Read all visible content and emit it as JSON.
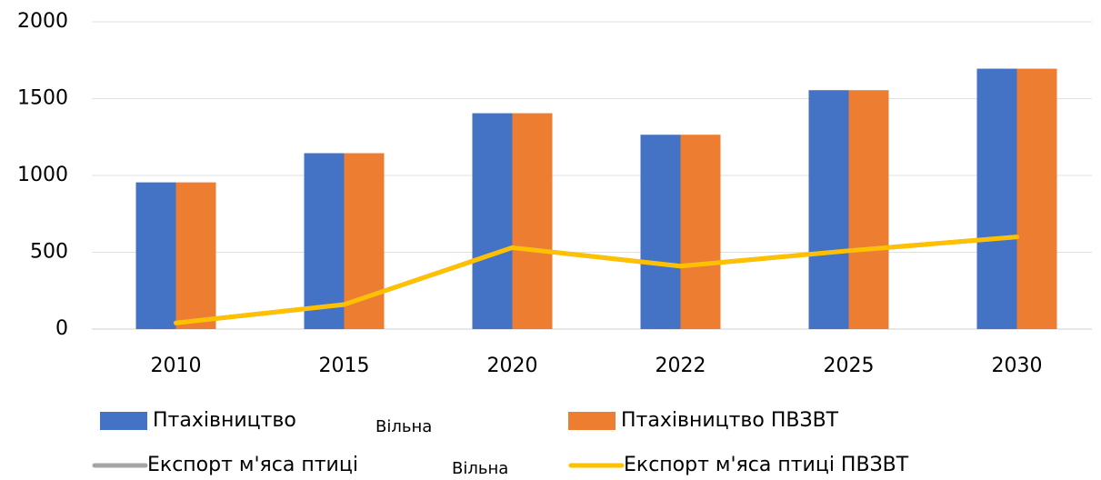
{
  "chart_data": {
    "type": "bar",
    "categories": [
      "2010",
      "2015",
      "2020",
      "2022",
      "2025",
      "2030"
    ],
    "series": [
      {
        "name": "Птахівництво",
        "type": "bar",
        "color": "#4472c4",
        "values": [
          955,
          1145,
          1405,
          1265,
          1555,
          1695
        ]
      },
      {
        "name": "Птахівництво ПВЗВТ",
        "type": "bar",
        "color": "#ed7d31",
        "values": [
          955,
          1145,
          1405,
          1265,
          1555,
          1695
        ]
      },
      {
        "name": "Експорт м'яса птиці",
        "type": "line",
        "color": "#a5a5a5",
        "values": [
          40,
          160,
          530,
          410,
          510,
          600
        ]
      },
      {
        "name": "Експорт м'яса птиці ПВЗВТ",
        "type": "line",
        "color": "#ffc000",
        "values": [
          40,
          160,
          530,
          410,
          510,
          600
        ]
      }
    ],
    "annotations": [
      "Вільна",
      "Вільна"
    ],
    "ylim": [
      0,
      2000
    ],
    "yticks": [
      0,
      500,
      1000,
      1500,
      2000
    ],
    "grid": true
  }
}
